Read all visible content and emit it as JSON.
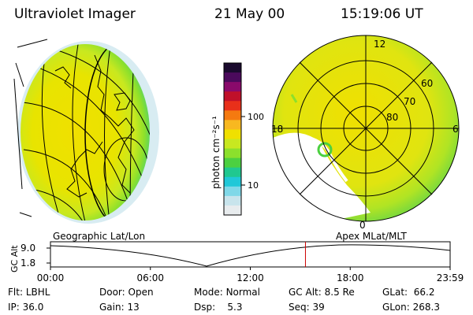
{
  "header": {
    "instrument": "Ultraviolet Imager",
    "date": "21 May 00",
    "time": "15:19:06 UT"
  },
  "colorbar": {
    "label": "photon cm⁻²s⁻¹",
    "ticks": [
      "100",
      "10"
    ],
    "colors": [
      "#1a0a2e",
      "#4b0a5c",
      "#8a0a6b",
      "#c0102a",
      "#e8301a",
      "#f57a10",
      "#f8b820",
      "#f0e000",
      "#c8e820",
      "#8ce02c",
      "#4cd040",
      "#20c890",
      "#20c8d8",
      "#80d8e8",
      "#c8e4ec",
      "#e8ecee"
    ]
  },
  "left_panel": {
    "caption": "Geographic Lat/Lon"
  },
  "right_panel": {
    "caption": "Apex MLat/MLT",
    "mlt_labels": {
      "top": "12",
      "bottom": "0",
      "left": "18",
      "right": "6"
    },
    "lat_labels": [
      "60",
      "70",
      "80"
    ]
  },
  "altitude_plot": {
    "ylabel": "GC Alt",
    "ticks": [
      "9.0",
      "1.8"
    ],
    "time_ticks": [
      "00:00",
      "06:00",
      "12:00",
      "18:00",
      "23:59"
    ],
    "current_time_fraction": 0.638,
    "marker_color": "#cc0000"
  },
  "info": {
    "row1": {
      "flt_label": "Flt:",
      "flt_value": "LBHL",
      "door_label": "Door:",
      "door_value": "Open",
      "mode_label": "Mode:",
      "mode_value": "Normal",
      "gcalt_label": "GC Alt:",
      "gcalt_value": "8.5 Re",
      "glat_label": "GLat:",
      "glat_value": "66.2"
    },
    "row2": {
      "ip_label": "IP:",
      "ip_value": "36.0",
      "gain_label": "Gain:",
      "gain_value": "13",
      "dsp_label": "Dsp:",
      "dsp_value": "5.3",
      "seq_label": "Seq:",
      "seq_value": "39",
      "glon_label": "GLon:",
      "glon_value": "268.3"
    }
  }
}
